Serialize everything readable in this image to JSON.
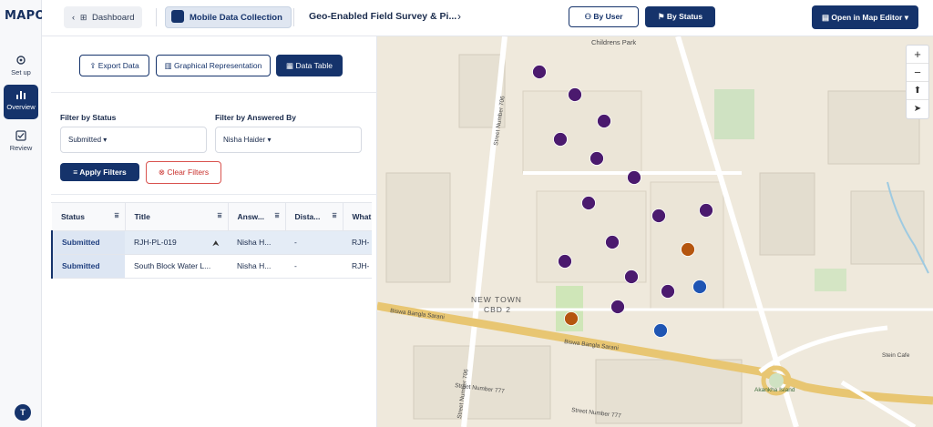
{
  "app": {
    "logo_main": "MAP",
    "logo_accent": "OG"
  },
  "rail": [
    {
      "label": "Set up"
    },
    {
      "label": "Overview"
    },
    {
      "label": "Review"
    }
  ],
  "user_initial": "T",
  "topbar": {
    "dashboard": "Dashboard",
    "mobile": "Mobile Data Collection",
    "survey": "Geo-Enabled Field Survey & Pi...",
    "by_user": "By User",
    "by_status": "By Status",
    "open_map": "Open in Map Editor"
  },
  "tabs": {
    "export": "Export Data",
    "graphical": "Graphical Representation",
    "table": "Data Table"
  },
  "filters": {
    "status_label": "Filter by Status",
    "status_value": "Submitted",
    "answered_label": "Filter by Answered By",
    "answered_value": "Nisha Haider",
    "apply": "Apply Filters",
    "clear": "Clear Filters"
  },
  "table": {
    "headers": [
      "Status",
      "Title",
      "Answ...",
      "Dista...",
      "What"
    ],
    "rows": [
      {
        "status": "Submitted",
        "title": "RJH-PL-019",
        "answered": "Nisha H...",
        "distance": "-",
        "what": "RJH-"
      },
      {
        "status": "Submitted",
        "title": "South Block Water L...",
        "answered": "Nisha H...",
        "distance": "-",
        "what": "RJH-"
      }
    ]
  },
  "map": {
    "labels": {
      "childrens_park": "Childrens Park",
      "street_706a": "Street Number 706",
      "street_706b": "Street Number 706",
      "new_town": "NEW TOWN",
      "cbd": "CBD 2",
      "biswa1": "Biswa Bangla Sarani",
      "biswa2": "Biswa Bangla Sarani",
      "street_777a": "Street Number 777",
      "street_777b": "Street Number 777",
      "akankha": "Akankha Island",
      "stein": "Stein Cafe"
    },
    "colors": {
      "purple": "#4b1a6e",
      "orange": "#b5560f",
      "blue": "#1f55b3"
    },
    "markers": [
      {
        "color": "purple"
      },
      {
        "color": "purple"
      },
      {
        "color": "purple"
      },
      {
        "color": "purple"
      },
      {
        "color": "purple"
      },
      {
        "color": "purple"
      },
      {
        "color": "purple"
      },
      {
        "color": "purple"
      },
      {
        "color": "purple"
      },
      {
        "color": "orange"
      },
      {
        "color": "purple"
      },
      {
        "color": "purple"
      },
      {
        "color": "purple"
      },
      {
        "color": "purple"
      },
      {
        "color": "blue"
      },
      {
        "color": "purple"
      },
      {
        "color": "orange"
      },
      {
        "color": "blue"
      }
    ]
  }
}
